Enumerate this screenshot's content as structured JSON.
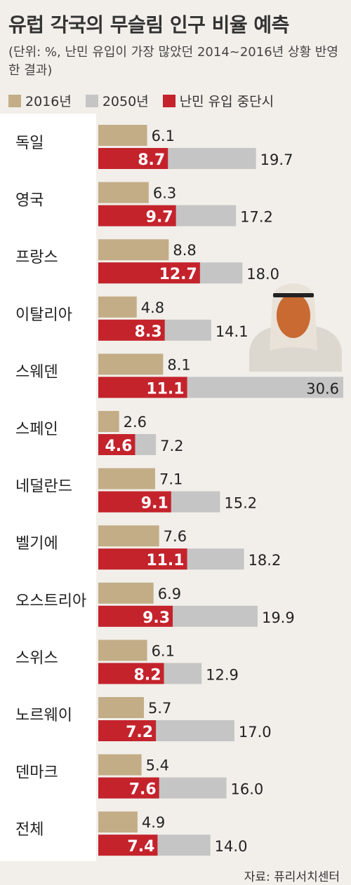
{
  "title": "유럽 각국의 무슬림 인구 비율 예측",
  "subtitle": "(단위: %, 난민 유입이 가장 많았던 2014~2016년 상황 반영한 결과)",
  "source": "자료: 퓨리서치센터",
  "colors": {
    "s2016": "#c3ad87",
    "s2050": "#c5c5c5",
    "halt": "#c4232c",
    "background": "#f2efea",
    "label_panel": "#ffffff"
  },
  "chart_data": {
    "type": "bar",
    "orientation": "horizontal",
    "title": "유럽 각국의 무슬림 인구 비율 예측",
    "subtitle": "(단위: %, 난민 유입이 가장 많았던 2014~2016년 상황 반영한 결과)",
    "legend": [
      "2016년",
      "2050년",
      "난민 유입 중단시"
    ],
    "legend_position": "top",
    "grid": false,
    "categories": [
      "독일",
      "영국",
      "프랑스",
      "이탈리아",
      "스웨덴",
      "스페인",
      "네덜란드",
      "벨기에",
      "오스트리아",
      "스위스",
      "노르웨이",
      "덴마크",
      "전체"
    ],
    "series": [
      {
        "name": "2016년",
        "values": [
          6.1,
          6.3,
          8.8,
          4.8,
          8.1,
          2.6,
          7.1,
          7.6,
          6.9,
          6.1,
          5.7,
          5.4,
          4.9
        ]
      },
      {
        "name": "2050년",
        "values": [
          19.7,
          17.2,
          18.0,
          14.1,
          30.6,
          7.2,
          15.2,
          18.2,
          19.9,
          12.9,
          17.0,
          16.0,
          14.0
        ]
      },
      {
        "name": "난민 유입 중단시",
        "values": [
          8.7,
          9.7,
          12.7,
          8.3,
          11.1,
          4.6,
          9.1,
          11.1,
          9.3,
          8.2,
          7.2,
          7.6,
          7.4
        ]
      }
    ],
    "value_labels": {
      "2016년": [
        "6.1",
        "6.3",
        "8.8",
        "4.8",
        "8.1",
        "2.6",
        "7.1",
        "7.6",
        "6.9",
        "6.1",
        "5.7",
        "5.4",
        "4.9"
      ],
      "2050년": [
        "19.7",
        "17.2",
        "18.0",
        "14.1",
        "30.6",
        "7.2",
        "15.2",
        "18.2",
        "19.9",
        "12.9",
        "17.0",
        "16.0",
        "14.0"
      ],
      "난민 유입 중단시": [
        "8.7",
        "9.7",
        "12.7",
        "8.3",
        "11.1",
        "4.6",
        "9.1",
        "11.1",
        "9.3",
        "8.2",
        "7.2",
        "7.6",
        "7.4"
      ]
    },
    "xlim": [
      0,
      30.6
    ]
  },
  "illustration": {
    "icon": "person-with-headscarf-icon"
  }
}
